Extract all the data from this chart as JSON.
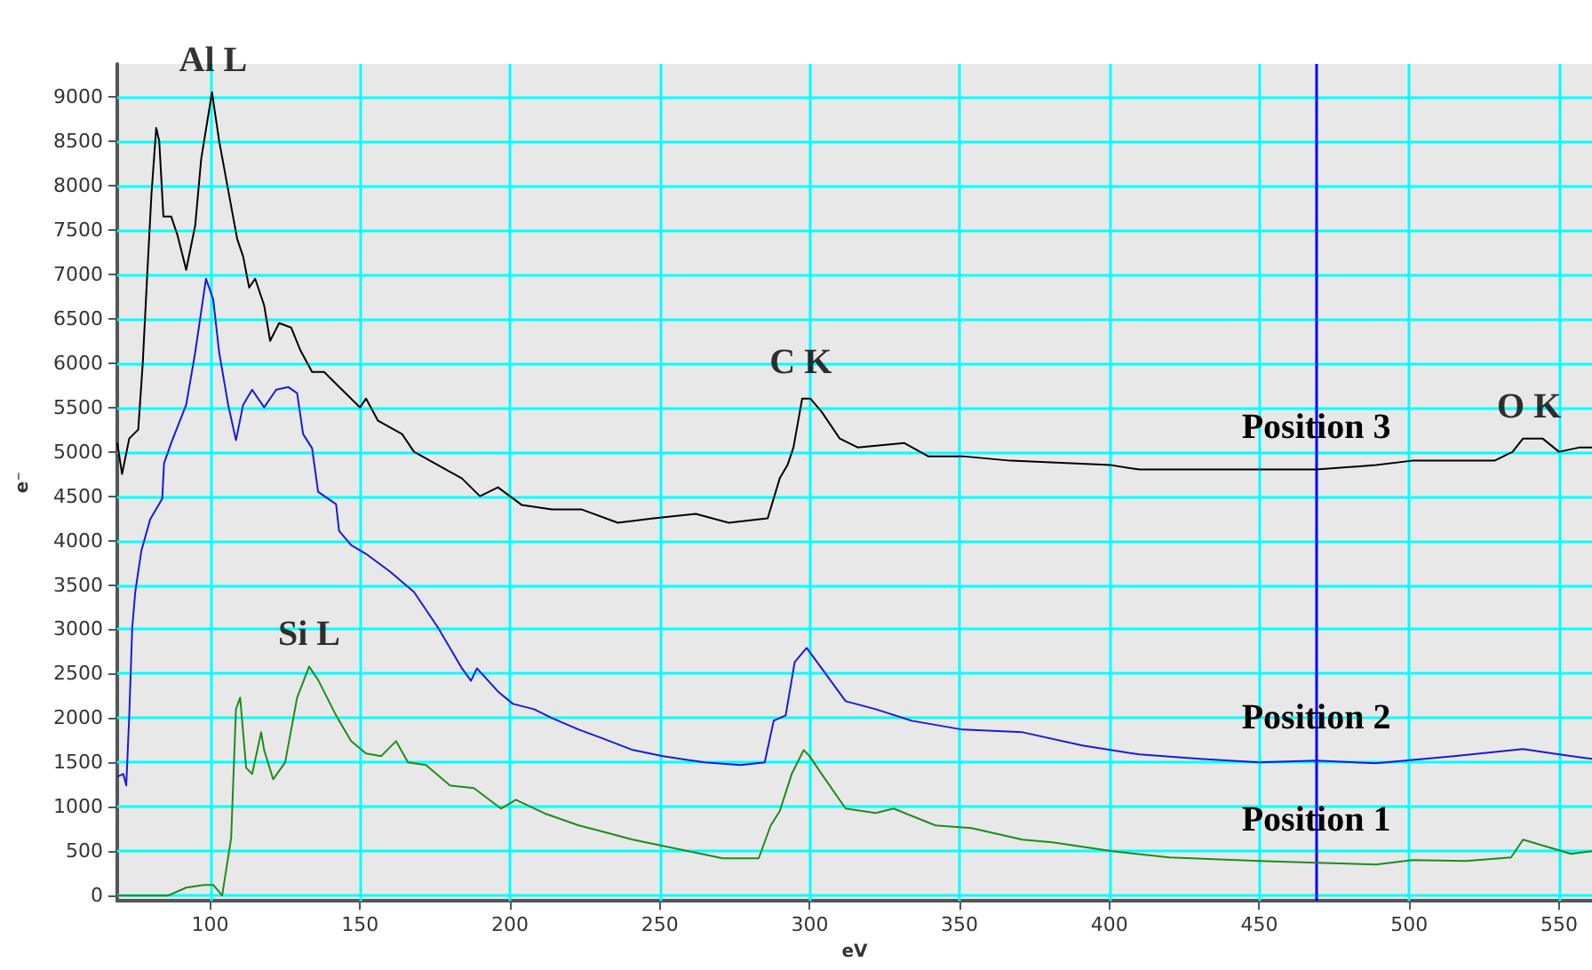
{
  "chart_data": {
    "type": "line",
    "xlabel": "eV",
    "ylabel": "e⁻",
    "xlim": [
      69,
      561
    ],
    "ylim": [
      -60,
      9370
    ],
    "xticks": [
      100,
      150,
      200,
      250,
      300,
      350,
      400,
      450,
      500,
      550
    ],
    "yticks": [
      0,
      500,
      1000,
      1500,
      2000,
      2500,
      3000,
      3500,
      4000,
      4500,
      5000,
      5500,
      6000,
      6500,
      7000,
      7500,
      8000,
      8500,
      9000
    ],
    "grid": true,
    "legend": false,
    "marker": "none",
    "line_style": "solid",
    "ref_lines": [
      {
        "axis": "x",
        "value": 469,
        "label": null,
        "color": "#0000ff"
      }
    ],
    "annotations": [
      {
        "text": "Al L",
        "x": 101,
        "y": 9050
      },
      {
        "text": "Si L",
        "x": 133,
        "y": 2580
      },
      {
        "text": "C K",
        "x": 297,
        "y": 5650
      },
      {
        "text": "O K",
        "x": 540,
        "y": 5150
      }
    ],
    "series": [
      {
        "name": "Position 3",
        "color": "#000000",
        "x": [
          69,
          70.6,
          73,
          76,
          77.5,
          79,
          80.4,
          82,
          83,
          84.4,
          87,
          89,
          92,
          95,
          97,
          100.6,
          103,
          106,
          109,
          111,
          113,
          115,
          118,
          120,
          123,
          127,
          130,
          134,
          138,
          144,
          150,
          152,
          156,
          164,
          168,
          176,
          184,
          190,
          196,
          204,
          214,
          224,
          236,
          248,
          262,
          273,
          286,
          290,
          292.6,
          294.6,
          297.5,
          300.2,
          304,
          310,
          316,
          331.5,
          339.5,
          351,
          367,
          400.5,
          410,
          450,
          469,
          489,
          501,
          528.5,
          534.5,
          538,
          544.5,
          550,
          557,
          561
        ],
        "values": [
          5100,
          4750,
          5150,
          5250,
          6000,
          7000,
          7900,
          8650,
          8500,
          7650,
          7650,
          7450,
          7050,
          7550,
          8300,
          9050,
          8500,
          7950,
          7400,
          7200,
          6850,
          6950,
          6650,
          6250,
          6450,
          6400,
          6150,
          5900,
          5900,
          5700,
          5500,
          5600,
          5350,
          5200,
          5000,
          4850,
          4700,
          4500,
          4600,
          4400,
          4350,
          4350,
          4200,
          4250,
          4300,
          4200,
          4250,
          4700,
          4850,
          5050,
          5600,
          5600,
          5450,
          5150,
          5050,
          5100,
          4950,
          4950,
          4900,
          4850,
          4800,
          4800,
          4800,
          4850,
          4900,
          4900,
          5000,
          5150,
          5150,
          5000,
          5050,
          5050
        ]
      },
      {
        "name": "Position 2",
        "color": "#1a1ad8",
        "x": [
          69,
          71,
          72,
          73,
          74,
          75,
          77,
          80,
          84,
          84.6,
          87,
          92,
          95,
          98.6,
          101,
          103,
          106,
          108.6,
          111,
          114,
          118,
          122,
          126,
          129,
          131,
          134,
          136,
          142,
          143,
          147,
          152,
          160,
          168,
          176,
          184,
          187,
          189,
          196,
          201,
          208,
          214,
          223,
          231,
          241,
          251,
          265,
          277,
          285,
          288,
          292,
          295,
          299,
          304,
          312,
          322,
          334,
          351,
          371,
          391,
          410,
          430,
          450,
          469,
          489,
          515,
          538,
          548,
          561
        ],
        "values": [
          1340,
          1370,
          1240,
          2030,
          3020,
          3420,
          3880,
          4240,
          4470,
          4870,
          5100,
          5530,
          6120,
          6950,
          6720,
          6120,
          5530,
          5130,
          5530,
          5700,
          5500,
          5700,
          5730,
          5660,
          5200,
          5040,
          4550,
          4410,
          4110,
          3950,
          3850,
          3650,
          3420,
          3020,
          2560,
          2420,
          2560,
          2300,
          2160,
          2100,
          2000,
          1870,
          1770,
          1640,
          1570,
          1500,
          1470,
          1500,
          1970,
          2030,
          2630,
          2790,
          2560,
          2190,
          2100,
          1970,
          1870,
          1840,
          1690,
          1590,
          1540,
          1500,
          1520,
          1490,
          1570,
          1650,
          1600,
          1540
        ]
      },
      {
        "name": "Position 1",
        "color": "#1f8a1f",
        "x": [
          69,
          86,
          92,
          98,
          101,
          104,
          107,
          108.6,
          110,
          112,
          114,
          117,
          118,
          121,
          125,
          129,
          133,
          136,
          142,
          147,
          152,
          157,
          162,
          166,
          172,
          180,
          188,
          197,
          202,
          212,
          223,
          231,
          241,
          251,
          261,
          271,
          283,
          287,
          290,
          294,
          298,
          300,
          304,
          312,
          322,
          328,
          342,
          354,
          371,
          381,
          401,
          420,
          450,
          469,
          489,
          501,
          519,
          534,
          538,
          548,
          554,
          561
        ],
        "values": [
          0,
          0,
          90,
          120,
          120,
          0,
          650,
          2100,
          2230,
          1440,
          1370,
          1840,
          1640,
          1310,
          1500,
          2230,
          2580,
          2430,
          2030,
          1740,
          1600,
          1570,
          1740,
          1500,
          1470,
          1240,
          1210,
          980,
          1080,
          920,
          790,
          720,
          630,
          560,
          490,
          420,
          420,
          790,
          950,
          1370,
          1640,
          1570,
          1370,
          980,
          930,
          980,
          790,
          760,
          630,
          600,
          500,
          430,
          390,
          370,
          350,
          400,
          390,
          430,
          630,
          530,
          470,
          500
        ]
      }
    ]
  }
}
